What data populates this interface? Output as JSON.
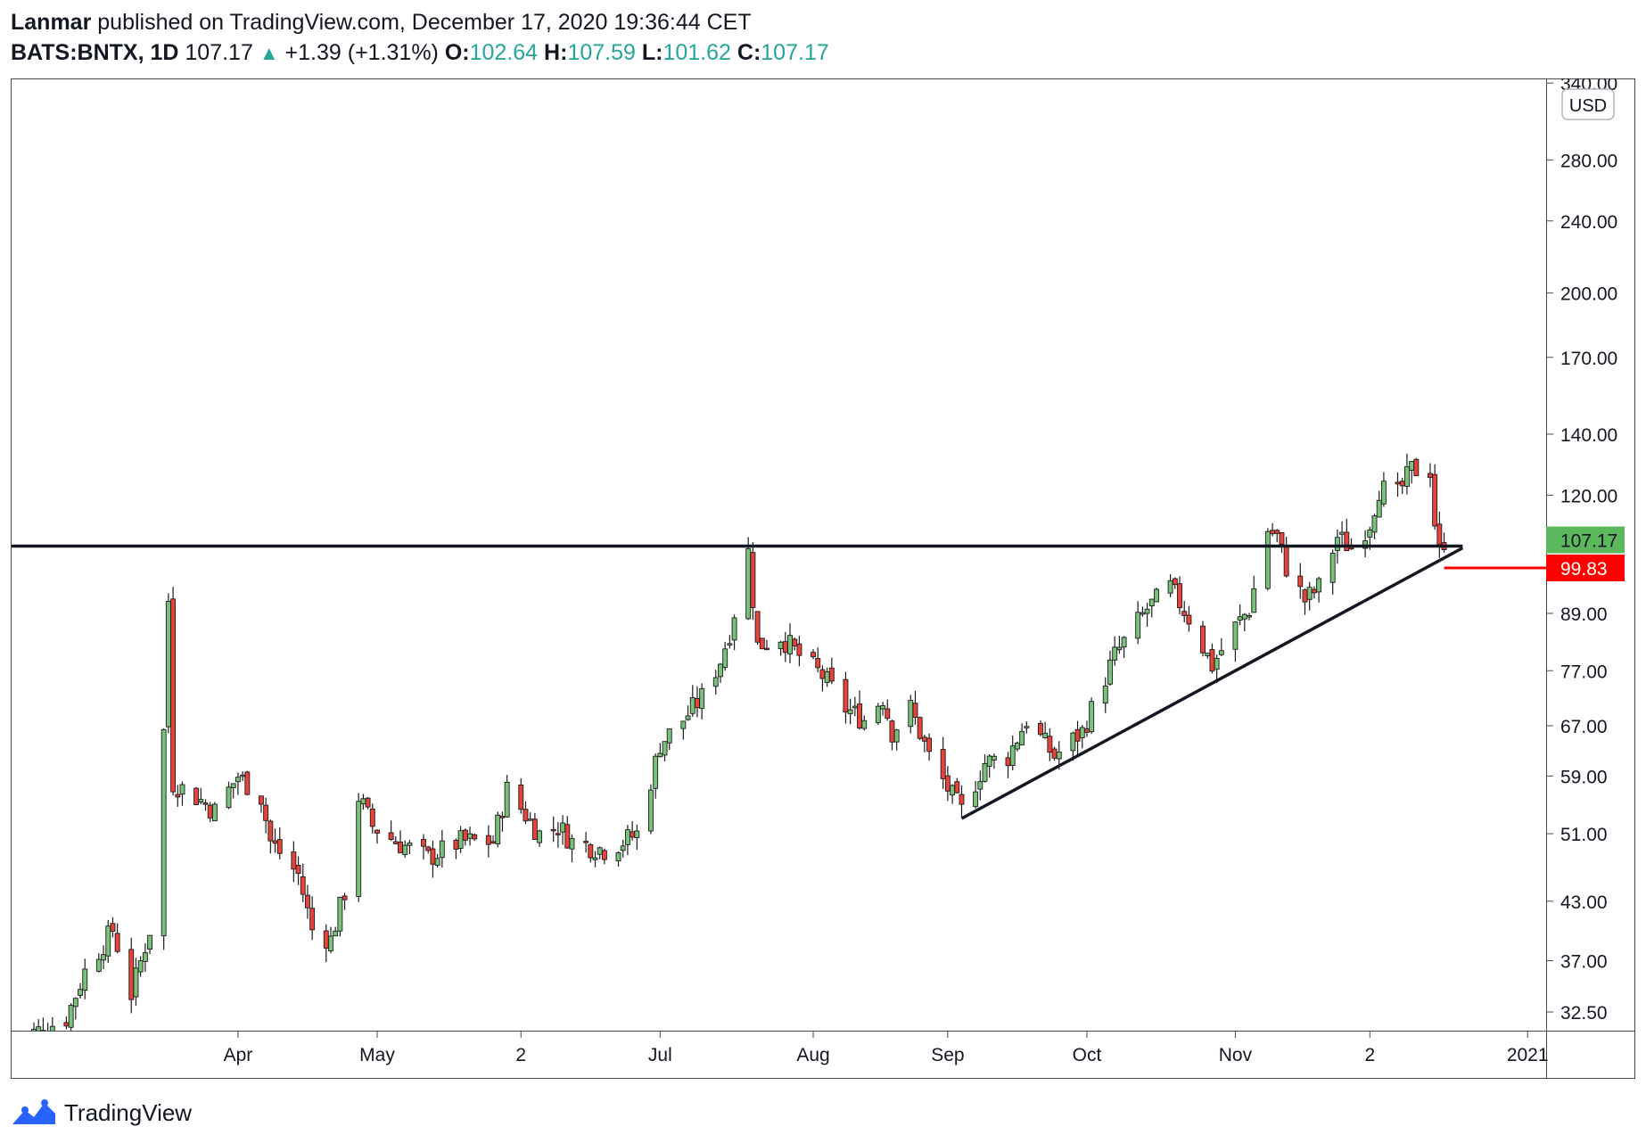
{
  "header": {
    "author": "Lanmar",
    "published_text": " published on TradingView.com, December 17, 2020 19:36:44 CET",
    "symbol": "BATS:BNTX, 1D",
    "last": "107.17",
    "arrow": "▲",
    "change": "+1.39 (+1.31%)",
    "o_label": "O:",
    "o_value": "102.64",
    "h_label": "H:",
    "h_value": "107.59",
    "l_label": "L:",
    "l_value": "101.62",
    "c_label": "C:",
    "c_value": "107.17"
  },
  "footer": {
    "brand": "TradingView",
    "logo_icon": "tradingview-logo-icon"
  },
  "colors": {
    "up": "#26a69a",
    "up_fill": "#78c27a",
    "down_fill": "#e8433b",
    "candle_border": "#1c1c1c",
    "last_price_label": "#5cb85c",
    "stop_label": "#ff0000",
    "line": "#131722",
    "axis": "#4a4a4a"
  },
  "chart_data": {
    "type": "candlestick",
    "scale": "log",
    "currency": "USD",
    "ylim": [
      31,
      344
    ],
    "x_range": [
      "2020-02-12",
      "2021-01-08"
    ],
    "y_ticks": [
      "32.50",
      "37.00",
      "43.00",
      "51.00",
      "59.00",
      "67.00",
      "77.00",
      "89.00",
      "120.00",
      "140.00",
      "170.00",
      "200.00",
      "240.00",
      "280.00",
      "340.00"
    ],
    "x_ticks": [
      {
        "label": "Apr",
        "date": "2020-04-01"
      },
      {
        "label": "May",
        "date": "2020-05-01"
      },
      {
        "label": "2",
        "date": "2020-06-01"
      },
      {
        "label": "Jul",
        "date": "2020-07-01"
      },
      {
        "label": "Aug",
        "date": "2020-08-03"
      },
      {
        "label": "Sep",
        "date": "2020-09-01"
      },
      {
        "label": "Oct",
        "date": "2020-10-01"
      },
      {
        "label": "Nov",
        "date": "2020-11-02"
      },
      {
        "label": "2",
        "date": "2020-12-01"
      },
      {
        "label": "2021",
        "date": "2021-01-04"
      }
    ],
    "last_price": {
      "label": "107.17",
      "value": 107.17
    },
    "stop_level": {
      "label": "99.83",
      "value": 99.83,
      "from": "2020-12-17",
      "to": "2020-12-31"
    },
    "resistance_line": {
      "value": 105.5,
      "from": "2020-02-12",
      "to": "2020-12-21"
    },
    "support_line": {
      "from": {
        "date": "2020-09-04",
        "value": 53
      },
      "to": {
        "date": "2020-12-21",
        "value": 105
      }
    },
    "anchors": [
      [
        "2020-02-12",
        30
      ],
      [
        "2020-02-24",
        32
      ],
      [
        "2020-02-28",
        36
      ],
      [
        "2020-03-05",
        40
      ],
      [
        "2020-03-09",
        34
      ],
      [
        "2020-03-13",
        40
      ],
      [
        "2020-03-16",
        66
      ],
      [
        "2020-03-17",
        92
      ],
      [
        "2020-03-18",
        58
      ],
      [
        "2020-03-23",
        56
      ],
      [
        "2020-03-27",
        54
      ],
      [
        "2020-04-01",
        59
      ],
      [
        "2020-04-06",
        56
      ],
      [
        "2020-04-08",
        50
      ],
      [
        "2020-04-14",
        46
      ],
      [
        "2020-04-17",
        40
      ],
      [
        "2020-04-21",
        39
      ],
      [
        "2020-04-24",
        44
      ],
      [
        "2020-04-27",
        56
      ],
      [
        "2020-04-30",
        52
      ],
      [
        "2020-05-05",
        50
      ],
      [
        "2020-05-12",
        48
      ],
      [
        "2020-05-19",
        50
      ],
      [
        "2020-05-26",
        50
      ],
      [
        "2020-05-29",
        57
      ],
      [
        "2020-06-05",
        51
      ],
      [
        "2020-06-09",
        52
      ],
      [
        "2020-06-12",
        50
      ],
      [
        "2020-06-19",
        49
      ],
      [
        "2020-06-23",
        50
      ],
      [
        "2020-06-26",
        51
      ],
      [
        "2020-06-30",
        61
      ],
      [
        "2020-07-01",
        64
      ],
      [
        "2020-07-06",
        68
      ],
      [
        "2020-07-10",
        72
      ],
      [
        "2020-07-14",
        79
      ],
      [
        "2020-07-16",
        85
      ],
      [
        "2020-07-20",
        104
      ],
      [
        "2020-07-22",
        82
      ],
      [
        "2020-07-27",
        84
      ],
      [
        "2020-07-31",
        80
      ],
      [
        "2020-08-05",
        76
      ],
      [
        "2020-08-10",
        70
      ],
      [
        "2020-08-14",
        68
      ],
      [
        "2020-08-18",
        72
      ],
      [
        "2020-08-20",
        66
      ],
      [
        "2020-08-24",
        70
      ],
      [
        "2020-08-28",
        62
      ],
      [
        "2020-09-02",
        56
      ],
      [
        "2020-09-04",
        54
      ],
      [
        "2020-09-09",
        61
      ],
      [
        "2020-09-14",
        62
      ],
      [
        "2020-09-18",
        68
      ],
      [
        "2020-09-24",
        62
      ],
      [
        "2020-09-30",
        66
      ],
      [
        "2020-10-07",
        80
      ],
      [
        "2020-10-14",
        90
      ],
      [
        "2020-10-19",
        95
      ],
      [
        "2020-10-23",
        88
      ],
      [
        "2020-10-28",
        78
      ],
      [
        "2020-11-02",
        86
      ],
      [
        "2020-11-05",
        90
      ],
      [
        "2020-11-09",
        110
      ],
      [
        "2020-11-11",
        108
      ],
      [
        "2020-11-13",
        100
      ],
      [
        "2020-11-17",
        92
      ],
      [
        "2020-11-20",
        95
      ],
      [
        "2020-11-24",
        108
      ],
      [
        "2020-11-27",
        105
      ],
      [
        "2020-12-01",
        112
      ],
      [
        "2020-12-03",
        122
      ],
      [
        "2020-12-07",
        120
      ],
      [
        "2020-12-10",
        128
      ],
      [
        "2020-12-14",
        128
      ],
      [
        "2020-12-15",
        112
      ],
      [
        "2020-12-16",
        104
      ],
      [
        "2020-12-17",
        107.17
      ]
    ]
  }
}
